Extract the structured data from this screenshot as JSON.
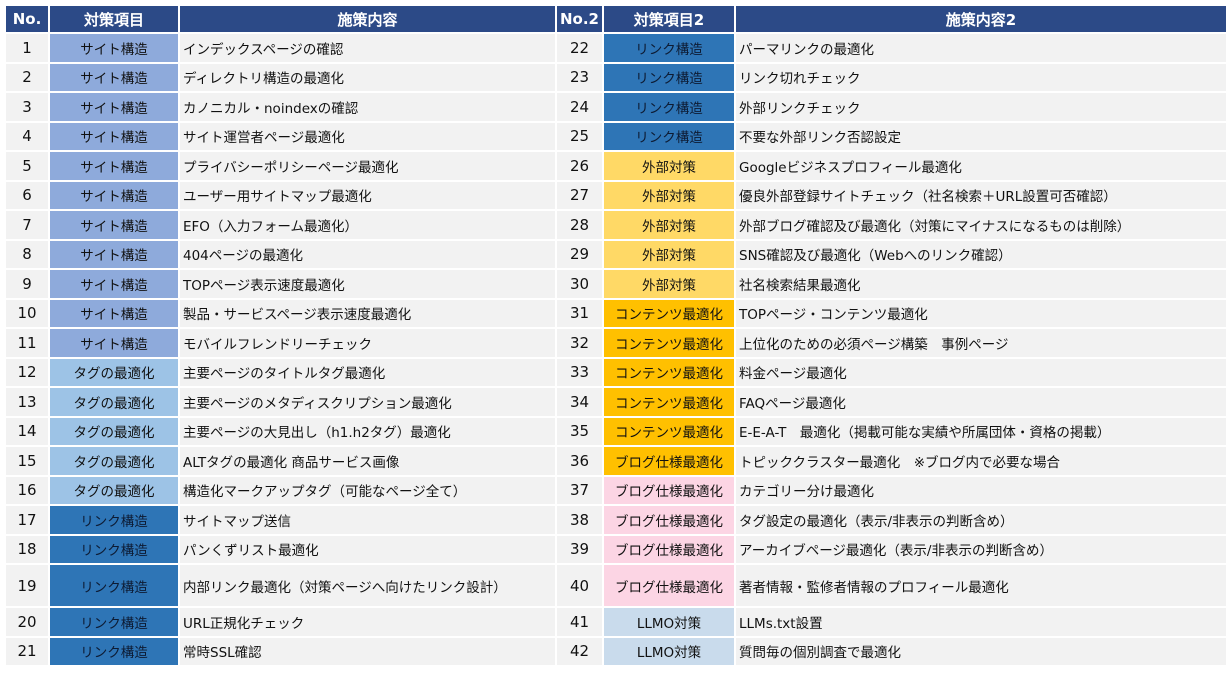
{
  "headers": {
    "no": "No.",
    "category": "対策項目",
    "measure": "施策内容",
    "no2": "No.2",
    "category2": "対策項目2",
    "measure2": "施策内容2"
  },
  "colors": {
    "header": "#2c4a87",
    "サイト構造": "#8eaadb",
    "タグの最適化": "#9dc3e6",
    "リンク構造": "#2e75b6",
    "外部対策": "#ffd966",
    "コンテンツ最適化": "#ffc000",
    "ブログ仕様最適化 (36)": "#ffc000",
    "ブログ仕様最適化": "#fcd5e4",
    "LLMO対策": "#c9dbec"
  },
  "rows": [
    {
      "left": {
        "no": "1",
        "category": "サイト構造",
        "measure": "インデックスページの確認"
      },
      "right": {
        "no": "22",
        "category": "リンク構造",
        "measure": "パーマリンクの最適化"
      }
    },
    {
      "left": {
        "no": "2",
        "category": "サイト構造",
        "measure": "ディレクトリ構造の最適化"
      },
      "right": {
        "no": "23",
        "category": "リンク構造",
        "measure": "リンク切れチェック"
      }
    },
    {
      "left": {
        "no": "3",
        "category": "サイト構造",
        "measure": "カノニカル・noindexの確認"
      },
      "right": {
        "no": "24",
        "category": "リンク構造",
        "measure": "外部リンクチェック"
      }
    },
    {
      "left": {
        "no": "4",
        "category": "サイト構造",
        "measure": "サイト運営者ページ最適化"
      },
      "right": {
        "no": "25",
        "category": "リンク構造",
        "measure": "不要な外部リンク否認設定"
      }
    },
    {
      "left": {
        "no": "5",
        "category": "サイト構造",
        "measure": "プライバシーポリシーページ最適化"
      },
      "right": {
        "no": "26",
        "category": "外部対策",
        "measure": "Googleビジネスプロフィール最適化"
      }
    },
    {
      "left": {
        "no": "6",
        "category": "サイト構造",
        "measure": "ユーザー用サイトマップ最適化"
      },
      "right": {
        "no": "27",
        "category": "外部対策",
        "measure": "優良外部登録サイトチェック（社名検索＋URL設置可否確認）"
      }
    },
    {
      "left": {
        "no": "7",
        "category": "サイト構造",
        "measure": "EFO（入力フォーム最適化）"
      },
      "right": {
        "no": "28",
        "category": "外部対策",
        "measure": "外部ブログ確認及び最適化（対策にマイナスになるものは削除）"
      }
    },
    {
      "left": {
        "no": "8",
        "category": "サイト構造",
        "measure": "404ページの最適化"
      },
      "right": {
        "no": "29",
        "category": "外部対策",
        "measure": "SNS確認及び最適化（Webへのリンク確認）"
      }
    },
    {
      "left": {
        "no": "9",
        "category": "サイト構造",
        "measure": "TOPページ表示速度最適化"
      },
      "right": {
        "no": "30",
        "category": "外部対策",
        "measure": "社名検索結果最適化"
      }
    },
    {
      "left": {
        "no": "10",
        "category": "サイト構造",
        "measure": "製品・サービスページ表示速度最適化"
      },
      "right": {
        "no": "31",
        "category": "コンテンツ最適化",
        "measure": "TOPページ・コンテンツ最適化"
      }
    },
    {
      "left": {
        "no": "11",
        "category": "サイト構造",
        "measure": "モバイルフレンドリーチェック"
      },
      "right": {
        "no": "32",
        "category": "コンテンツ最適化",
        "measure": "上位化のための必須ページ構築　事例ページ"
      }
    },
    {
      "left": {
        "no": "12",
        "category": "タグの最適化",
        "measure": "主要ページのタイトルタグ最適化"
      },
      "right": {
        "no": "33",
        "category": "コンテンツ最適化",
        "measure": "料金ページ最適化"
      }
    },
    {
      "left": {
        "no": "13",
        "category": "タグの最適化",
        "measure": "主要ページのメタディスクリプション最適化"
      },
      "right": {
        "no": "34",
        "category": "コンテンツ最適化",
        "measure": "FAQページ最適化"
      }
    },
    {
      "left": {
        "no": "14",
        "category": "タグの最適化",
        "measure": "主要ページの大見出し（h1.h2タグ）最適化"
      },
      "right": {
        "no": "35",
        "category": "コンテンツ最適化",
        "measure": "E-E-A-T　最適化（掲載可能な実績や所属団体・資格の掲載）"
      }
    },
    {
      "left": {
        "no": "15",
        "category": "タグの最適化",
        "measure": "ALTタグの最適化 商品サービス画像"
      },
      "right": {
        "no": "36",
        "category": "ブログ仕様最適化",
        "measure": "トピッククラスター最適化　※ブログ内で必要な場合"
      }
    },
    {
      "left": {
        "no": "16",
        "category": "タグの最適化",
        "measure": "構造化マークアップタグ（可能なページ全て）"
      },
      "right": {
        "no": "37",
        "category": "ブログ仕様最適化",
        "measure": "カテゴリー分け最適化"
      }
    },
    {
      "left": {
        "no": "17",
        "category": "リンク構造",
        "measure": "サイトマップ送信"
      },
      "right": {
        "no": "38",
        "category": "ブログ仕様最適化",
        "measure": "タグ設定の最適化（表示/非表示の判断含め）"
      }
    },
    {
      "left": {
        "no": "18",
        "category": "リンク構造",
        "measure": "パンくずリスト最適化"
      },
      "right": {
        "no": "39",
        "category": "ブログ仕様最適化",
        "measure": "アーカイブページ最適化（表示/非表示の判断含め）"
      }
    },
    {
      "left": {
        "no": "19",
        "category": "リンク構造",
        "measure": "内部リンク最適化（対策ページへ向けたリンク設計）"
      },
      "right": {
        "no": "40",
        "category": "ブログ仕様最適化",
        "measure": "著者情報・監修者情報のプロフィール最適化"
      }
    },
    {
      "left": {
        "no": "20",
        "category": "リンク構造",
        "measure": "URL正規化チェック"
      },
      "right": {
        "no": "41",
        "category": "LLMO対策",
        "measure": "LLMs.txt設置"
      }
    },
    {
      "left": {
        "no": "21",
        "category": "リンク構造",
        "measure": "常時SSL確認"
      },
      "right": {
        "no": "42",
        "category": "LLMO対策",
        "measure": "質問毎の個別調査で最適化"
      }
    }
  ]
}
